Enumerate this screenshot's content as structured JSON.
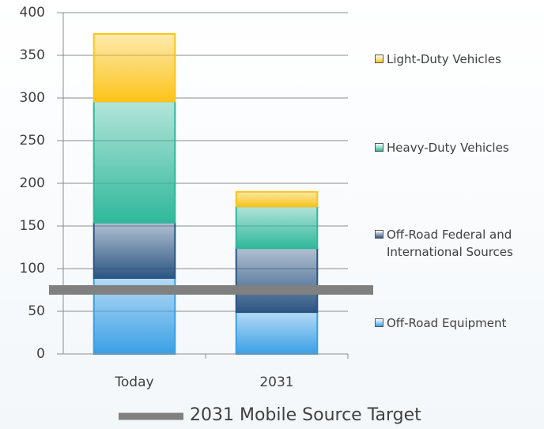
{
  "chart_data": {
    "type": "stacked_bar",
    "categories": [
      "Today",
      "2031"
    ],
    "series": [
      {
        "name": "Off-Road Equipment",
        "color": "#3aa0e6",
        "values": [
          89,
          49
        ]
      },
      {
        "name": "Off-Road Federal and International Sources",
        "color": "#2c5582",
        "values": [
          65,
          75
        ]
      },
      {
        "name": "Heavy-Duty Vehicles",
        "color": "#2fb89a",
        "values": [
          142,
          49
        ]
      },
      {
        "name": "Light-Duty Vehicles",
        "color": "#fcc419",
        "values": [
          79,
          17
        ]
      }
    ],
    "target": {
      "label": "2031 Mobile Source Target",
      "value": 75,
      "color": "#808080"
    },
    "ylim": [
      0,
      400
    ],
    "yticks": [
      0,
      50,
      100,
      150,
      200,
      250,
      300,
      350,
      400
    ],
    "grid": true
  }
}
